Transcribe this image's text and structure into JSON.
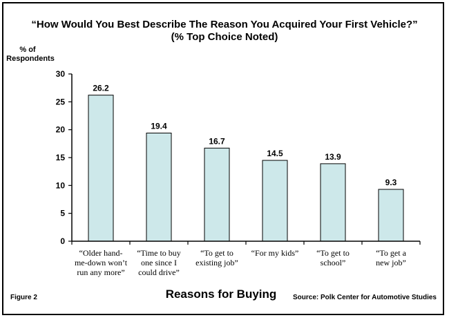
{
  "chart_data": {
    "type": "bar",
    "title_line1": "“How Would You Best Describe The Reason You Acquired Your First Vehicle?”",
    "title_line2": "(% Top Choice Noted)",
    "ylabel_line1": "% of",
    "ylabel_line2": "Respondents",
    "xlabel": "Reasons for Buying",
    "ylim": [
      0,
      30
    ],
    "yticks": [
      0,
      5,
      10,
      15,
      20,
      25,
      30
    ],
    "categories": [
      [
        "“Older hand-",
        "me-down won’t",
        "run any more”"
      ],
      [
        "“Time to buy",
        "one since I",
        "could drive”"
      ],
      [
        "“To get to",
        "existing job”"
      ],
      [
        "“For my kids”"
      ],
      [
        "“To get to",
        "school”"
      ],
      [
        "“To get a",
        "new job”"
      ]
    ],
    "values": [
      26.2,
      19.4,
      16.7,
      14.5,
      13.9,
      9.3
    ],
    "value_labels": [
      "26.2",
      "19.4",
      "16.7",
      "14.5",
      "13.9",
      "9.3"
    ],
    "bar_color": "#cde8ea",
    "grid": false,
    "legend": "none"
  },
  "footer": {
    "figure_label": "Figure 2",
    "source": "Source:  Polk Center for Automotive Studies"
  }
}
